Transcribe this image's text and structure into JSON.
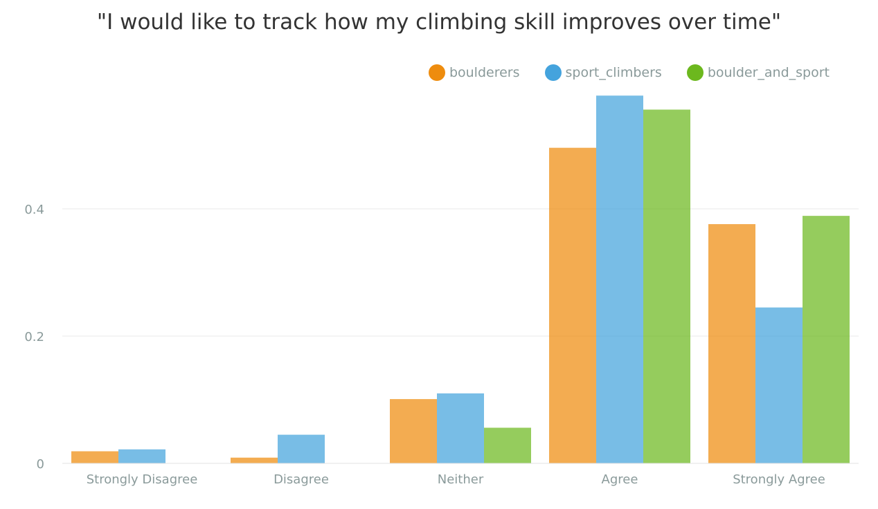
{
  "chart_data": {
    "type": "bar",
    "title": "\"I would like to track how my climbing skill improves over time\"",
    "xlabel": "",
    "ylabel": "",
    "categories": [
      "Strongly Disagree",
      "Disagree",
      "Neither",
      "Agree",
      "Strongly Agree"
    ],
    "series": [
      {
        "name": "boulderers",
        "color": "#ee8c0e",
        "values": [
          0.019,
          0.009,
          0.101,
          0.496,
          0.376
        ]
      },
      {
        "name": "sport_climbers",
        "color": "#44a3dd",
        "values": [
          0.022,
          0.045,
          0.11,
          0.578,
          0.245
        ]
      },
      {
        "name": "boulder_and_sport",
        "color": "#6cb81e",
        "values": [
          0,
          0,
          0.056,
          0.556,
          0.389
        ]
      }
    ],
    "ylim": [
      0,
      0.6
    ],
    "yticks": [
      0,
      0.2,
      0.4
    ],
    "ytick_labels": [
      "0",
      "0.2",
      "0.4"
    ],
    "grid": true,
    "legend_position": "top-right"
  }
}
